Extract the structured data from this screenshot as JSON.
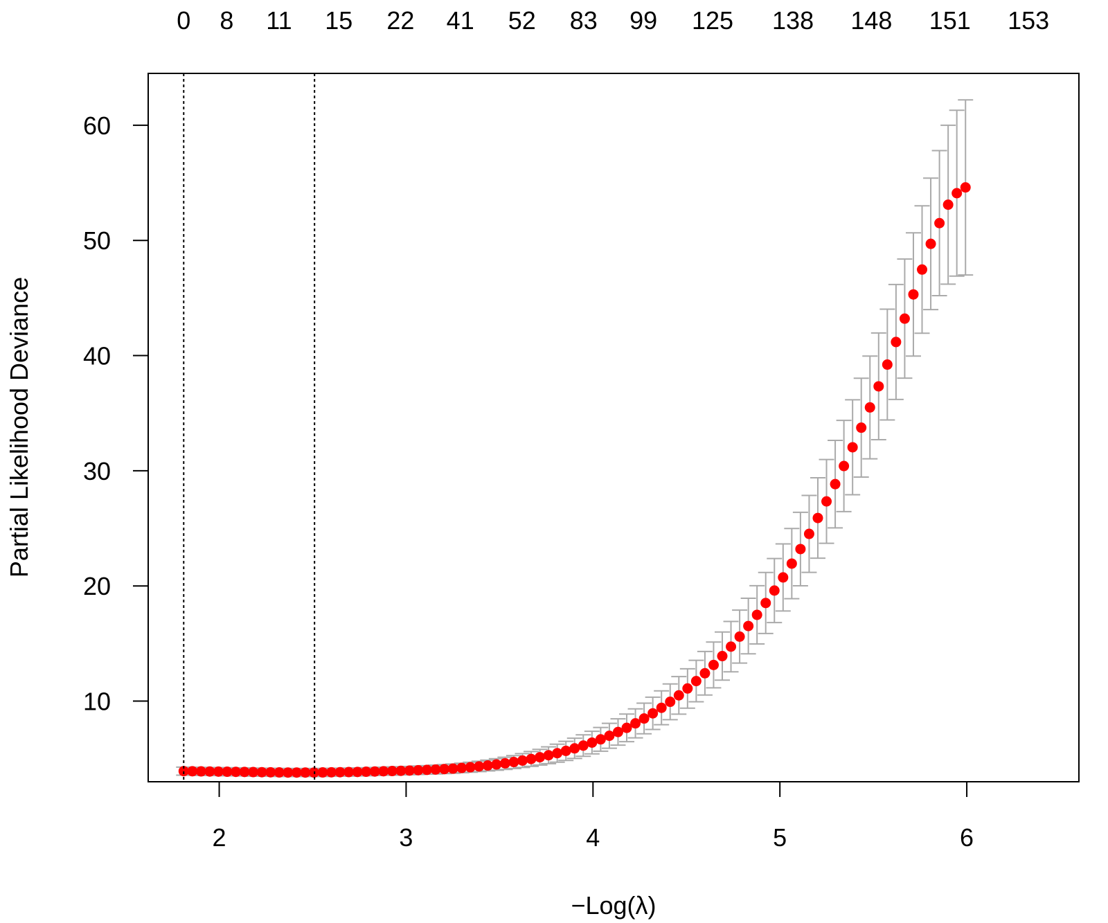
{
  "chart_data": {
    "type": "scatter",
    "title": "",
    "xlabel": "−Log(λ)",
    "ylabel": "Partial Likelihood Deviance",
    "xlim": [
      1.62,
      6.6
    ],
    "ylim": [
      3.0,
      64.5
    ],
    "x_ticks": [
      2,
      3,
      4,
      5,
      6
    ],
    "y_ticks": [
      10,
      20,
      30,
      40,
      50,
      60
    ],
    "top_axis": {
      "x": [
        1.81,
        2.04,
        2.32,
        2.64,
        2.97,
        3.29,
        3.62,
        3.95,
        4.27,
        4.64,
        5.07,
        5.49,
        5.91,
        6.33
      ],
      "labels": [
        "0",
        "8",
        "11",
        "15",
        "22",
        "41",
        "52",
        "83",
        "99",
        "125",
        "138",
        "148",
        "151",
        "153"
      ]
    },
    "vlines": [
      1.81,
      2.51
    ],
    "grid": false,
    "legend": "none",
    "colors": {
      "points": "#ff0000",
      "error_bars": "#aaaaaa",
      "vlines": "#000000",
      "frame": "#000000"
    },
    "series": [
      {
        "x_start": 1.81,
        "x_step": 0.04648,
        "values": [
          3.92,
          3.91,
          3.9,
          3.89,
          3.88,
          3.87,
          3.86,
          3.85,
          3.84,
          3.83,
          3.82,
          3.81,
          3.8,
          3.8,
          3.8,
          3.8,
          3.81,
          3.82,
          3.83,
          3.84,
          3.85,
          3.87,
          3.89,
          3.91,
          3.93,
          3.95,
          3.97,
          4.0,
          4.03,
          4.06,
          4.1,
          4.14,
          4.2,
          4.26,
          4.33,
          4.41,
          4.5,
          4.6,
          4.71,
          4.84,
          4.98,
          5.13,
          5.3,
          5.48,
          5.68,
          5.9,
          6.14,
          6.4,
          6.68,
          6.99,
          7.32,
          7.68,
          8.07,
          8.49,
          8.94,
          9.42,
          9.94,
          10.5,
          11.1,
          11.74,
          12.42,
          13.14,
          13.91,
          14.73,
          15.6,
          16.52,
          17.49,
          18.52,
          19.6,
          20.74,
          21.94,
          23.2,
          24.52,
          25.9,
          27.34,
          28.84,
          30.41,
          32.04,
          33.74,
          35.5,
          37.33,
          39.22,
          41.18,
          43.21,
          45.31,
          47.47,
          49.7,
          51.5,
          53.1,
          54.1,
          54.6
        ],
        "error_half_width": [
          0.35,
          0.35,
          0.35,
          0.35,
          0.35,
          0.35,
          0.35,
          0.35,
          0.35,
          0.35,
          0.35,
          0.35,
          0.35,
          0.35,
          0.35,
          0.35,
          0.35,
          0.35,
          0.35,
          0.35,
          0.35,
          0.35,
          0.35,
          0.35,
          0.36,
          0.36,
          0.36,
          0.37,
          0.37,
          0.38,
          0.39,
          0.4,
          0.41,
          0.43,
          0.45,
          0.47,
          0.5,
          0.53,
          0.56,
          0.6,
          0.64,
          0.68,
          0.73,
          0.78,
          0.83,
          0.88,
          0.93,
          0.98,
          1.03,
          1.08,
          1.14,
          1.2,
          1.26,
          1.33,
          1.4,
          1.47,
          1.55,
          1.63,
          1.71,
          1.8,
          1.89,
          1.99,
          2.09,
          2.19,
          2.3,
          2.41,
          2.53,
          2.65,
          2.78,
          2.91,
          3.05,
          3.19,
          3.34,
          3.49,
          3.64,
          3.8,
          3.96,
          4.12,
          4.29,
          4.46,
          4.63,
          4.81,
          4.99,
          5.17,
          5.35,
          5.53,
          5.71,
          6.3,
          6.9,
          7.2,
          7.6
        ]
      }
    ]
  }
}
